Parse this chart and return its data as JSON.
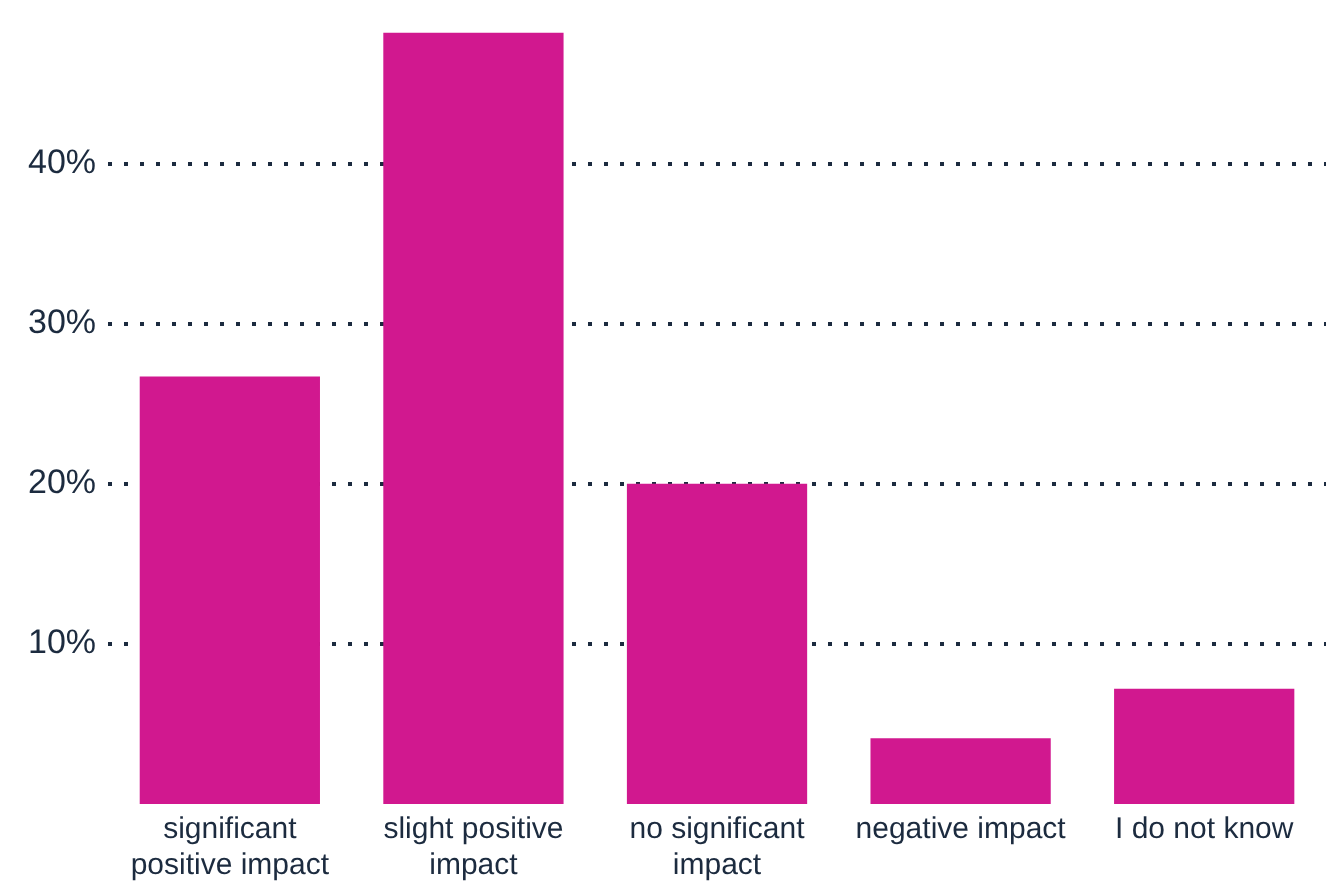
{
  "chart_data": {
    "type": "bar",
    "categories": [
      "significant positive impact",
      "slight positive impact",
      "no significant impact",
      "negative impact",
      "I do not know"
    ],
    "values": [
      26.7,
      48.2,
      20.0,
      4.1,
      7.2
    ],
    "color": "#d1188f",
    "ylim": [
      0,
      48.2
    ],
    "yticks": [
      {
        "value": 10,
        "label": "10%"
      },
      {
        "value": 20,
        "label": "20%"
      },
      {
        "value": 30,
        "label": "30%"
      },
      {
        "value": 40,
        "label": "40%"
      }
    ],
    "grid": "y",
    "line_style": "dotted"
  }
}
